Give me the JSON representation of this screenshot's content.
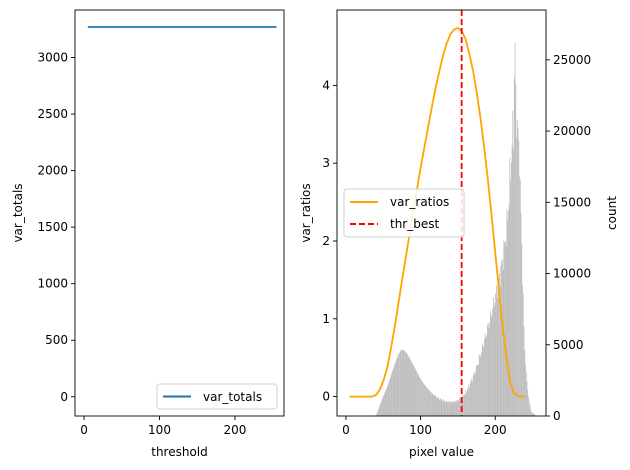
{
  "chart_data": [
    {
      "type": "line",
      "xlabel": "threshold",
      "ylabel": "var_totals",
      "xlim": [
        -12,
        265
      ],
      "ylim": [
        -170,
        3420
      ],
      "xticks": [
        0,
        100,
        200
      ],
      "yticks": [
        0,
        500,
        1000,
        1500,
        2000,
        2500,
        3000
      ],
      "legend": "lower-right",
      "series": [
        {
          "name": "var_totals",
          "color": "#1f77b4",
          "x": [
            5,
            255
          ],
          "y": [
            3270,
            3270
          ]
        }
      ]
    },
    {
      "type": "line",
      "xlabel": "pixel value",
      "ylabel": "var_ratios",
      "y2label": "count",
      "xlim": [
        -12,
        268
      ],
      "ylim": [
        -0.25,
        4.97
      ],
      "y2lim": [
        0,
        28500
      ],
      "xticks": [
        0,
        100,
        200
      ],
      "yticks": [
        0,
        1,
        2,
        3,
        4
      ],
      "y2ticks": [
        0,
        5000,
        10000,
        15000,
        20000,
        25000
      ],
      "legend": "center-left",
      "series": [
        {
          "name": "var_ratios",
          "color": "#ffa500",
          "x": [
            5,
            20,
            35,
            40,
            45,
            50,
            55,
            60,
            65,
            70,
            75,
            80,
            85,
            90,
            95,
            100,
            105,
            110,
            115,
            120,
            125,
            130,
            135,
            140,
            145,
            150,
            155,
            160,
            165,
            170,
            175,
            180,
            185,
            190,
            195,
            200,
            205,
            210,
            215,
            220,
            225,
            230,
            235,
            240
          ],
          "y": [
            0,
            0,
            0,
            0.02,
            0.08,
            0.2,
            0.36,
            0.6,
            0.88,
            1.18,
            1.48,
            1.78,
            2.08,
            2.38,
            2.66,
            2.94,
            3.2,
            3.46,
            3.72,
            3.96,
            4.18,
            4.38,
            4.54,
            4.66,
            4.72,
            4.74,
            4.7,
            4.6,
            4.42,
            4.2,
            3.92,
            3.6,
            3.22,
            2.8,
            2.34,
            1.86,
            1.36,
            0.9,
            0.5,
            0.18,
            0.05,
            0.01,
            0,
            0
          ]
        },
        {
          "name": "thr_best",
          "color": "#ff0000",
          "style": "dashed",
          "x": 155
        }
      ],
      "histogram": {
        "color": "#bdbdbd",
        "anchors_x": [
          0,
          40,
          45,
          50,
          55,
          60,
          65,
          70,
          75,
          80,
          85,
          90,
          95,
          100,
          105,
          110,
          115,
          120,
          125,
          130,
          135,
          140,
          145,
          150,
          155,
          160,
          165,
          170,
          175,
          180,
          185,
          190,
          195,
          200,
          205,
          210,
          215,
          218,
          220,
          222,
          224,
          226,
          228,
          230,
          232,
          234,
          236,
          238,
          240,
          244,
          248,
          255
        ],
        "anchors_count": [
          0,
          0,
          700,
          1400,
          2000,
          2800,
          3600,
          4300,
          4700,
          4500,
          4100,
          3600,
          3100,
          2600,
          2200,
          1900,
          1600,
          1400,
          1200,
          1100,
          1000,
          1000,
          1000,
          1100,
          1300,
          1600,
          2100,
          2700,
          3400,
          4300,
          5200,
          6200,
          7200,
          8300,
          9500,
          11000,
          13000,
          15000,
          17000,
          18500,
          20000,
          21000,
          22000,
          20500,
          18000,
          15000,
          11000,
          7000,
          4000,
          1500,
          300,
          0
        ],
        "spikes": [
          [
            222,
            19000
          ],
          [
            225,
            23800
          ],
          [
            226,
            26200
          ],
          [
            229,
            20800
          ],
          [
            232,
            16800
          ]
        ]
      }
    }
  ]
}
